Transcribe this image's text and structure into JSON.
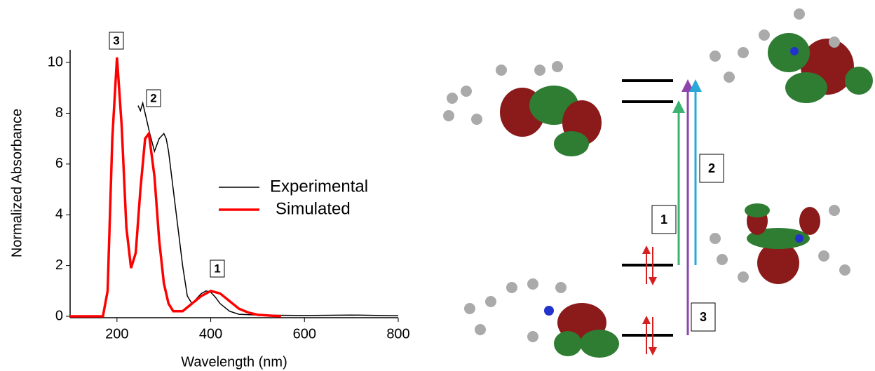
{
  "chart_data": {
    "type": "line",
    "xlabel": "Wavelength (nm)",
    "ylabel": "Normalized Absorbance",
    "xlim": [
      100,
      800
    ],
    "ylim": [
      0,
      10.5
    ],
    "xticks": [
      200,
      400,
      600,
      800
    ],
    "yticks": [
      0,
      2,
      4,
      6,
      8,
      10
    ],
    "series": [
      {
        "name": "Experimental",
        "color": "#000000",
        "x": [
          245,
          250,
          255,
          260,
          265,
          270,
          280,
          290,
          300,
          305,
          310,
          320,
          330,
          340,
          350,
          360,
          370,
          380,
          390,
          400,
          410,
          420,
          440,
          460,
          500,
          600,
          700,
          800
        ],
        "values": [
          8.3,
          8.1,
          8.4,
          8.0,
          7.6,
          7.2,
          6.5,
          7.0,
          7.2,
          7.0,
          6.5,
          5.0,
          3.5,
          2.0,
          0.8,
          0.5,
          0.7,
          0.9,
          1.0,
          0.95,
          0.75,
          0.5,
          0.2,
          0.08,
          0.05,
          0.03,
          0.05,
          0.02
        ]
      },
      {
        "name": "Simulated",
        "color": "#ff0000",
        "x": [
          100,
          170,
          180,
          190,
          200,
          210,
          220,
          230,
          240,
          250,
          260,
          268,
          280,
          290,
          300,
          310,
          320,
          340,
          360,
          380,
          400,
          420,
          440,
          460,
          480,
          500,
          550
        ],
        "values": [
          0,
          0,
          1,
          7,
          10.2,
          7.5,
          3.5,
          1.9,
          2.5,
          5,
          7,
          7.2,
          5.5,
          3,
          1.3,
          0.5,
          0.2,
          0.2,
          0.5,
          0.8,
          1.0,
          0.9,
          0.6,
          0.3,
          0.15,
          0.06,
          0
        ]
      }
    ],
    "annotations": [
      "3",
      "2",
      "1"
    ]
  },
  "diagram": {
    "transition_labels": [
      "1",
      "2",
      "3"
    ]
  }
}
